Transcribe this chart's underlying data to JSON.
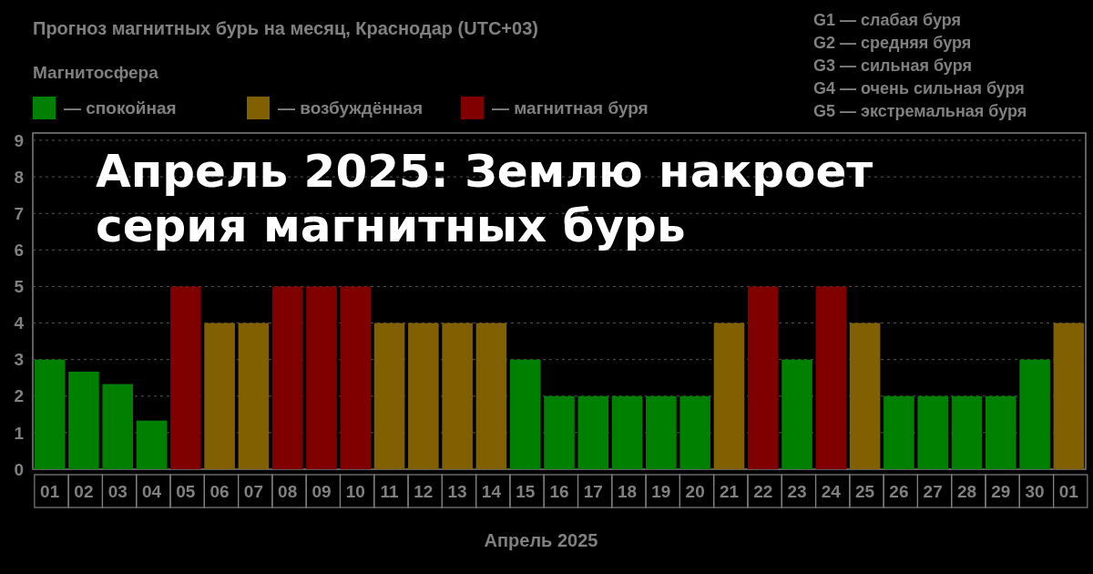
{
  "chart_data": {
    "type": "bar",
    "title": "Прогноз магнитных бурь на месяц, Краснодар (UTC+03)",
    "subtitle": "Апрель 2025: Землю накроет серия магнитных бурь",
    "xlabel": "Апрель 2025",
    "legend_title": "Магнитосфера",
    "legend": "top left",
    "grid": "y",
    "categories": [
      "01",
      "02",
      "03",
      "04",
      "05",
      "06",
      "07",
      "08",
      "09",
      "10",
      "11",
      "12",
      "13",
      "14",
      "15",
      "16",
      "17",
      "18",
      "19",
      "20",
      "21",
      "22",
      "23",
      "24",
      "25",
      "26",
      "27",
      "28",
      "29",
      "30",
      "01"
    ],
    "series": [
      {
        "name": "— спокойная",
        "color": "#008000",
        "values": [
          3,
          2.67,
          2.33,
          1.33,
          null,
          null,
          null,
          null,
          null,
          null,
          null,
          null,
          null,
          null,
          3,
          2,
          2,
          2,
          2,
          2,
          null,
          null,
          3,
          null,
          null,
          2,
          2,
          2,
          2,
          3,
          null
        ]
      },
      {
        "name": "— возбуждённая",
        "color": "#806000",
        "values": [
          null,
          null,
          null,
          null,
          null,
          4,
          4,
          null,
          null,
          null,
          4,
          4,
          4,
          4,
          null,
          null,
          null,
          null,
          null,
          null,
          4,
          null,
          null,
          null,
          4,
          null,
          null,
          null,
          null,
          null,
          4
        ]
      },
      {
        "name": "— магнитная буря",
        "color": "#800000",
        "values": [
          null,
          null,
          null,
          null,
          5,
          null,
          null,
          5,
          5,
          5,
          null,
          null,
          null,
          null,
          null,
          null,
          null,
          null,
          null,
          null,
          null,
          5,
          null,
          5,
          null,
          null,
          null,
          null,
          null,
          null,
          null
        ]
      }
    ],
    "ylim": [
      0,
      9.2
    ],
    "yticks": [
      0,
      1,
      2,
      3,
      4,
      5,
      6,
      7,
      8,
      9
    ],
    "annotations": [
      "G1 — слабая буря",
      "G2 — средняя буря",
      "G3 — сильная буря",
      "G4 — очень сильная буря",
      "G5 — экстремальная буря"
    ]
  }
}
